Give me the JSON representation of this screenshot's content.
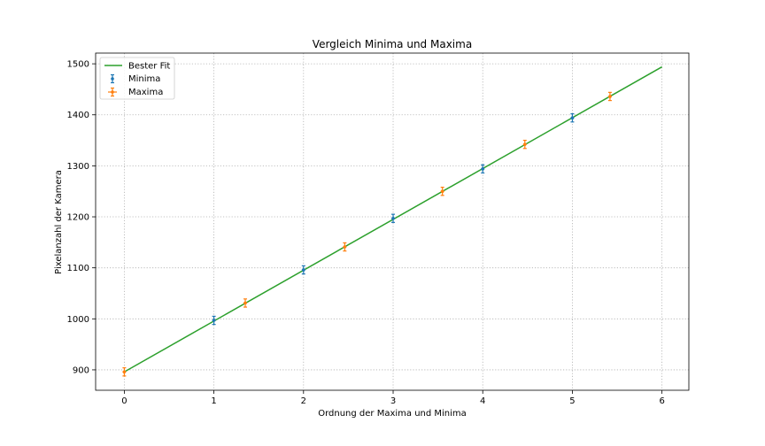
{
  "chart_data": {
    "type": "scatter",
    "title": "Vergleich Minima und Maxima",
    "xlabel": "Ordnung der Maxima und Minima",
    "ylabel": "Pixelanzahl der Kamera",
    "xlim": [
      -0.32,
      6.3
    ],
    "ylim": [
      860,
      1521
    ],
    "xticks": [
      0,
      1,
      2,
      3,
      4,
      5,
      6
    ],
    "yticks": [
      900,
      1000,
      1100,
      1200,
      1300,
      1400,
      1500
    ],
    "grid": true,
    "legend_position": "top-left",
    "fit": {
      "name": "Bester Fit",
      "color": "#2ca02c",
      "x": [
        0,
        6
      ],
      "y": [
        896,
        1494
      ]
    },
    "series": [
      {
        "name": "Minima",
        "color": "#1f77b4",
        "x": [
          1,
          2,
          3,
          4,
          5
        ],
        "y": [
          997,
          1096,
          1197,
          1294,
          1394
        ],
        "yerr": 8,
        "xerr": 0.02
      },
      {
        "name": "Maxima",
        "color": "#ff7f0e",
        "x": [
          0,
          1.35,
          2.46,
          3.55,
          4.47,
          5.42
        ],
        "y": [
          896,
          1031,
          1141,
          1250,
          1342,
          1436
        ],
        "yerr": 8,
        "xerr": 0.02
      }
    ]
  }
}
